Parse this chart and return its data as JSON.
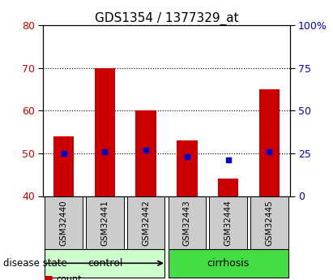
{
  "title": "GDS1354 / 1377329_at",
  "samples": [
    "GSM32440",
    "GSM32441",
    "GSM32442",
    "GSM32443",
    "GSM32444",
    "GSM32445"
  ],
  "count_values": [
    54.0,
    70.0,
    60.0,
    53.0,
    44.0,
    65.0
  ],
  "percentile_values": [
    25.0,
    26.0,
    27.0,
    23.0,
    21.0,
    26.0
  ],
  "bar_bottom": 40,
  "ylim_left": [
    40,
    80
  ],
  "ylim_right": [
    0,
    100
  ],
  "yticks_left": [
    40,
    50,
    60,
    70,
    80
  ],
  "yticks_right": [
    0,
    25,
    50,
    75,
    100
  ],
  "ytick_labels_right": [
    "0",
    "25",
    "50",
    "75",
    "100%"
  ],
  "bar_color": "#cc0000",
  "marker_color": "#0000cc",
  "groups": [
    {
      "label": "control",
      "indices": [
        0,
        1,
        2
      ],
      "color": "#ccffcc"
    },
    {
      "label": "cirrhosis",
      "indices": [
        3,
        4,
        5
      ],
      "color": "#44dd44"
    }
  ],
  "title_fontsize": 11,
  "tick_label_color_left": "#cc0000",
  "tick_label_color_right": "#0000cc",
  "xticklabel_area_color": "#cccccc",
  "bar_width": 0.5,
  "figsize": [
    4.11,
    3.45
  ],
  "dpi": 100
}
